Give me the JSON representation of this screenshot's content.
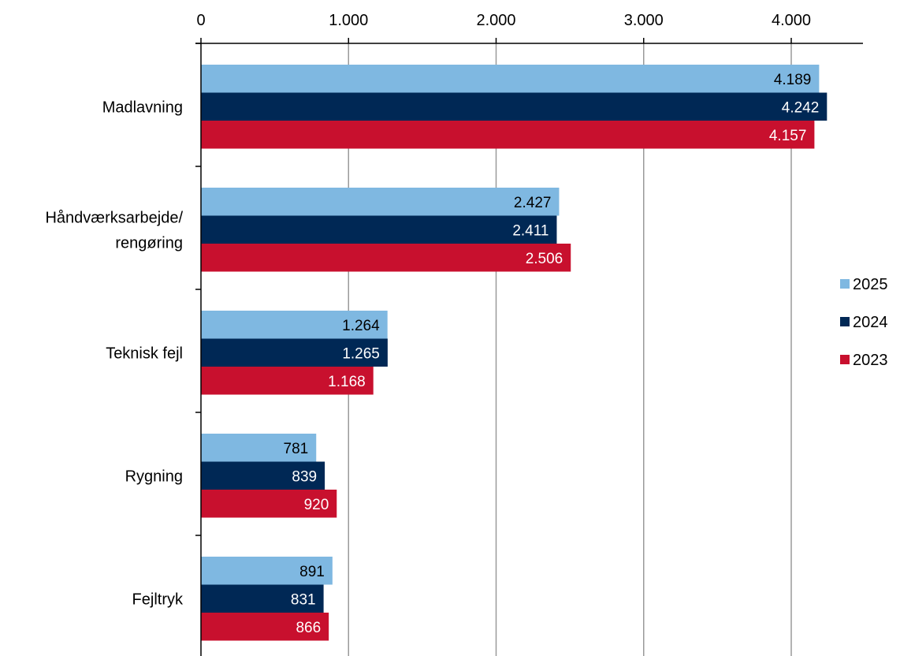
{
  "chart_data": {
    "type": "bar",
    "orientation": "horizontal",
    "categories": [
      "Madlavning",
      "Håndværksarbejde/ rengøring",
      "Teknisk fejl",
      "Rygning",
      "Fejltryk"
    ],
    "category_lines": [
      [
        "Madlavning"
      ],
      [
        "Håndværksarbejde/",
        "rengøring"
      ],
      [
        "Teknisk fejl"
      ],
      [
        "Rygning"
      ],
      [
        "Fejltryk"
      ]
    ],
    "series": [
      {
        "name": "2025",
        "color": "#7fb8e1",
        "label_color": "#000000",
        "values": [
          4189,
          2427,
          1264,
          781,
          891
        ],
        "labels": [
          "4.189",
          "2.427",
          "1.264",
          "781",
          "891"
        ]
      },
      {
        "name": "2024",
        "color": "#002855",
        "label_color": "#ffffff",
        "values": [
          4242,
          2411,
          1265,
          839,
          831
        ],
        "labels": [
          "4.242",
          "2.411",
          "1.265",
          "839",
          "831"
        ]
      },
      {
        "name": "2023",
        "color": "#c8102e",
        "label_color": "#ffffff",
        "values": [
          4157,
          2506,
          1168,
          920,
          866
        ],
        "labels": [
          "4.157",
          "2.506",
          "1.168",
          "920",
          "866"
        ]
      }
    ],
    "xlim": [
      0,
      4500
    ],
    "ticks": [
      0,
      1000,
      2000,
      3000,
      4000
    ],
    "tick_labels": [
      "0",
      "1.000",
      "2.000",
      "3.000",
      "4.000"
    ],
    "x_axis_position": "top",
    "grid": true,
    "legend_position": "right",
    "title": "",
    "xlabel": "",
    "ylabel": ""
  }
}
